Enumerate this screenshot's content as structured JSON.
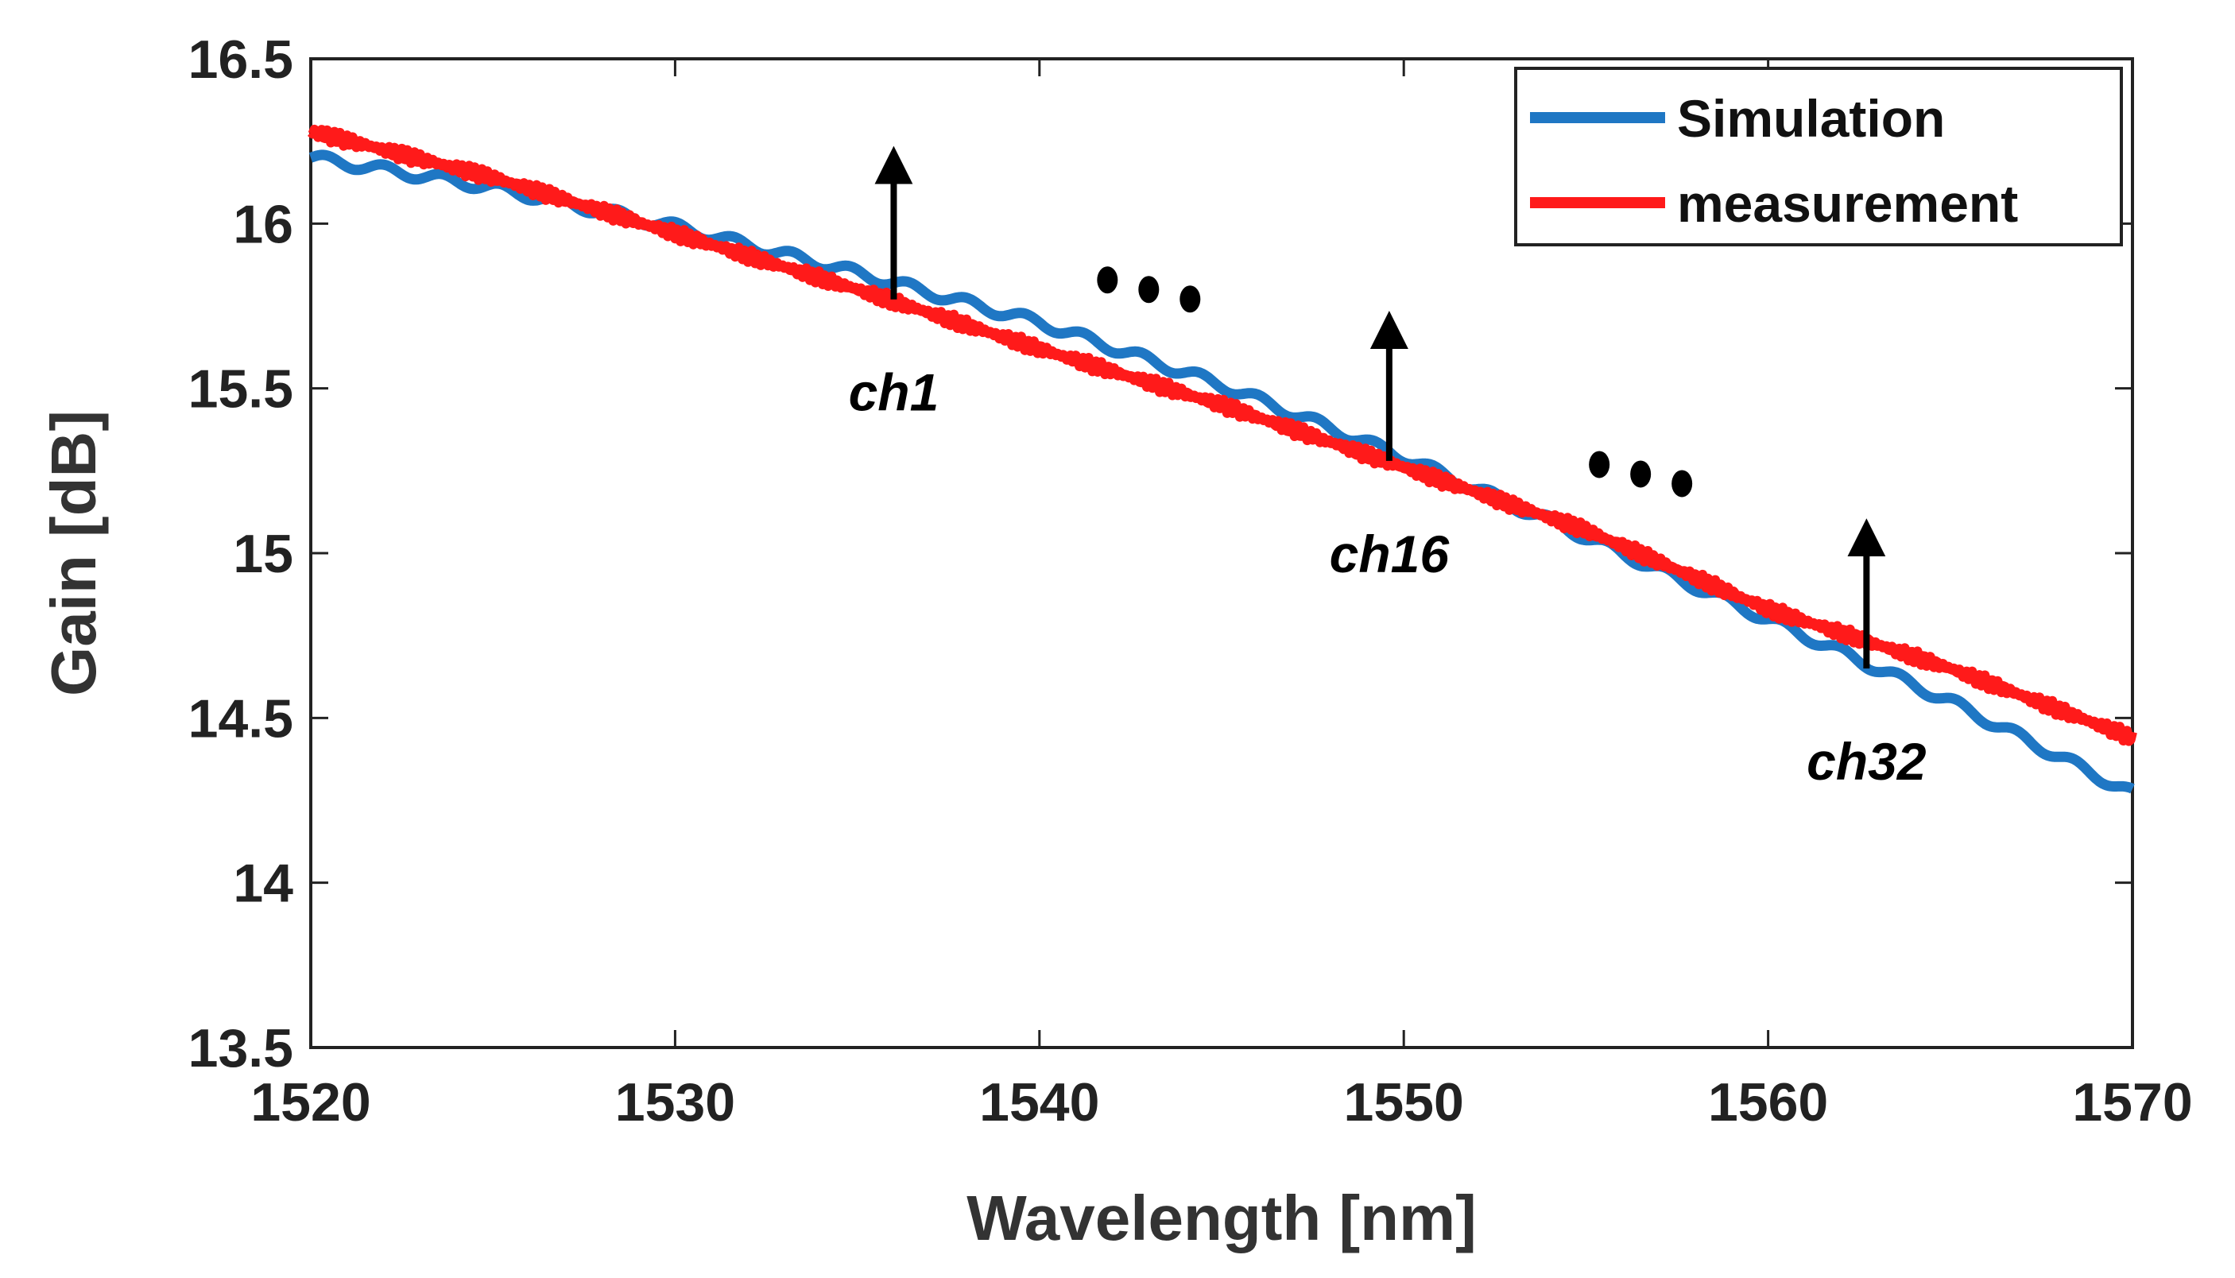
{
  "chart_data": {
    "type": "line",
    "title": "",
    "xlabel": "Wavelength [nm]",
    "ylabel": "Gain [dB]",
    "xlim": [
      1520,
      1570
    ],
    "ylim": [
      13.5,
      16.5
    ],
    "xticks": [
      "1520",
      "1530",
      "1540",
      "1550",
      "1560",
      "1570"
    ],
    "yticks": [
      "13.5",
      "14",
      "14.5",
      "15",
      "15.5",
      "16",
      "16.5"
    ],
    "grid": false,
    "legend_position": "top-right",
    "series": [
      {
        "name": "Simulation",
        "color": "#1f77c4",
        "x": [
          1520,
          1525,
          1530,
          1535,
          1540,
          1545,
          1550,
          1555,
          1560,
          1565,
          1570
        ],
        "y": [
          16.2,
          16.11,
          15.99,
          15.85,
          15.7,
          15.51,
          15.29,
          15.05,
          14.8,
          14.55,
          14.27
        ]
      },
      {
        "name": "measurement",
        "color": "#ff1a1a",
        "x": [
          1520,
          1525,
          1530,
          1535,
          1540,
          1545,
          1550,
          1555,
          1560,
          1565,
          1570
        ],
        "y": [
          16.28,
          16.14,
          15.97,
          15.8,
          15.62,
          15.45,
          15.26,
          15.07,
          14.83,
          14.65,
          14.44
        ]
      }
    ],
    "annotations": [
      {
        "label": "ch1",
        "x": 1536.0,
        "y_from": 15.77,
        "y_to": 16.25
      },
      {
        "label": "ch16",
        "x": 1549.6,
        "y_from": 15.28,
        "y_to": 15.75
      },
      {
        "label": "ch32",
        "x": 1562.7,
        "y_from": 14.65,
        "y_to": 15.12
      }
    ],
    "ellipses": [
      {
        "label": "...",
        "x": 1543.0,
        "y": 15.8
      },
      {
        "label": "...",
        "x": 1556.5,
        "y": 15.24
      }
    ]
  }
}
